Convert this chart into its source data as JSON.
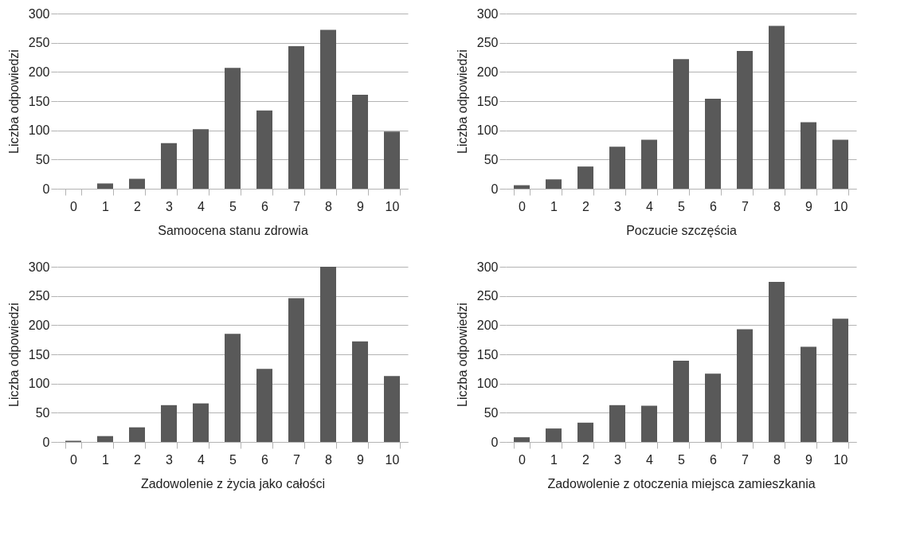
{
  "chart_data": [
    {
      "type": "bar",
      "xlabel": "Samoocena stanu zdrowia",
      "ylabel": "Liczba odpowiedzi",
      "categories": [
        "0",
        "1",
        "2",
        "3",
        "4",
        "5",
        "6",
        "7",
        "8",
        "9",
        "10"
      ],
      "values": [
        0,
        9,
        17,
        78,
        102,
        207,
        134,
        244,
        272,
        161,
        98
      ],
      "color": "#595959",
      "ylim": [
        0,
        300
      ],
      "yticks": [
        0,
        50,
        100,
        150,
        200,
        250,
        300
      ],
      "grid": "y"
    },
    {
      "type": "bar",
      "xlabel": "Poczucie szczęścia",
      "ylabel": "Liczba odpowiedzi",
      "categories": [
        "0",
        "1",
        "2",
        "3",
        "4",
        "5",
        "6",
        "7",
        "8",
        "9",
        "10"
      ],
      "values": [
        6,
        16,
        38,
        72,
        84,
        222,
        154,
        236,
        279,
        114,
        84
      ],
      "color": "#595959",
      "ylim": [
        0,
        300
      ],
      "yticks": [
        0,
        50,
        100,
        150,
        200,
        250,
        300
      ],
      "grid": "y"
    },
    {
      "type": "bar",
      "xlabel": "Zadowolenie z życia jako całości",
      "ylabel": "Liczba odpowiedzi",
      "categories": [
        "0",
        "1",
        "2",
        "3",
        "4",
        "5",
        "6",
        "7",
        "8",
        "9",
        "10"
      ],
      "values": [
        2,
        10,
        25,
        63,
        66,
        185,
        125,
        246,
        300,
        172,
        113
      ],
      "color": "#595959",
      "ylim": [
        0,
        300
      ],
      "yticks": [
        0,
        50,
        100,
        150,
        200,
        250,
        300
      ],
      "grid": "y"
    },
    {
      "type": "bar",
      "xlabel": "Zadowolenie z otoczenia miejsca zamieszkania",
      "ylabel": "Liczba odpowiedzi",
      "categories": [
        "0",
        "1",
        "2",
        "3",
        "4",
        "5",
        "6",
        "7",
        "8",
        "9",
        "10"
      ],
      "values": [
        8,
        23,
        33,
        63,
        62,
        139,
        117,
        193,
        274,
        163,
        211
      ],
      "color": "#595959",
      "ylim": [
        0,
        300
      ],
      "yticks": [
        0,
        50,
        100,
        150,
        200,
        250,
        300
      ],
      "grid": "y"
    }
  ]
}
